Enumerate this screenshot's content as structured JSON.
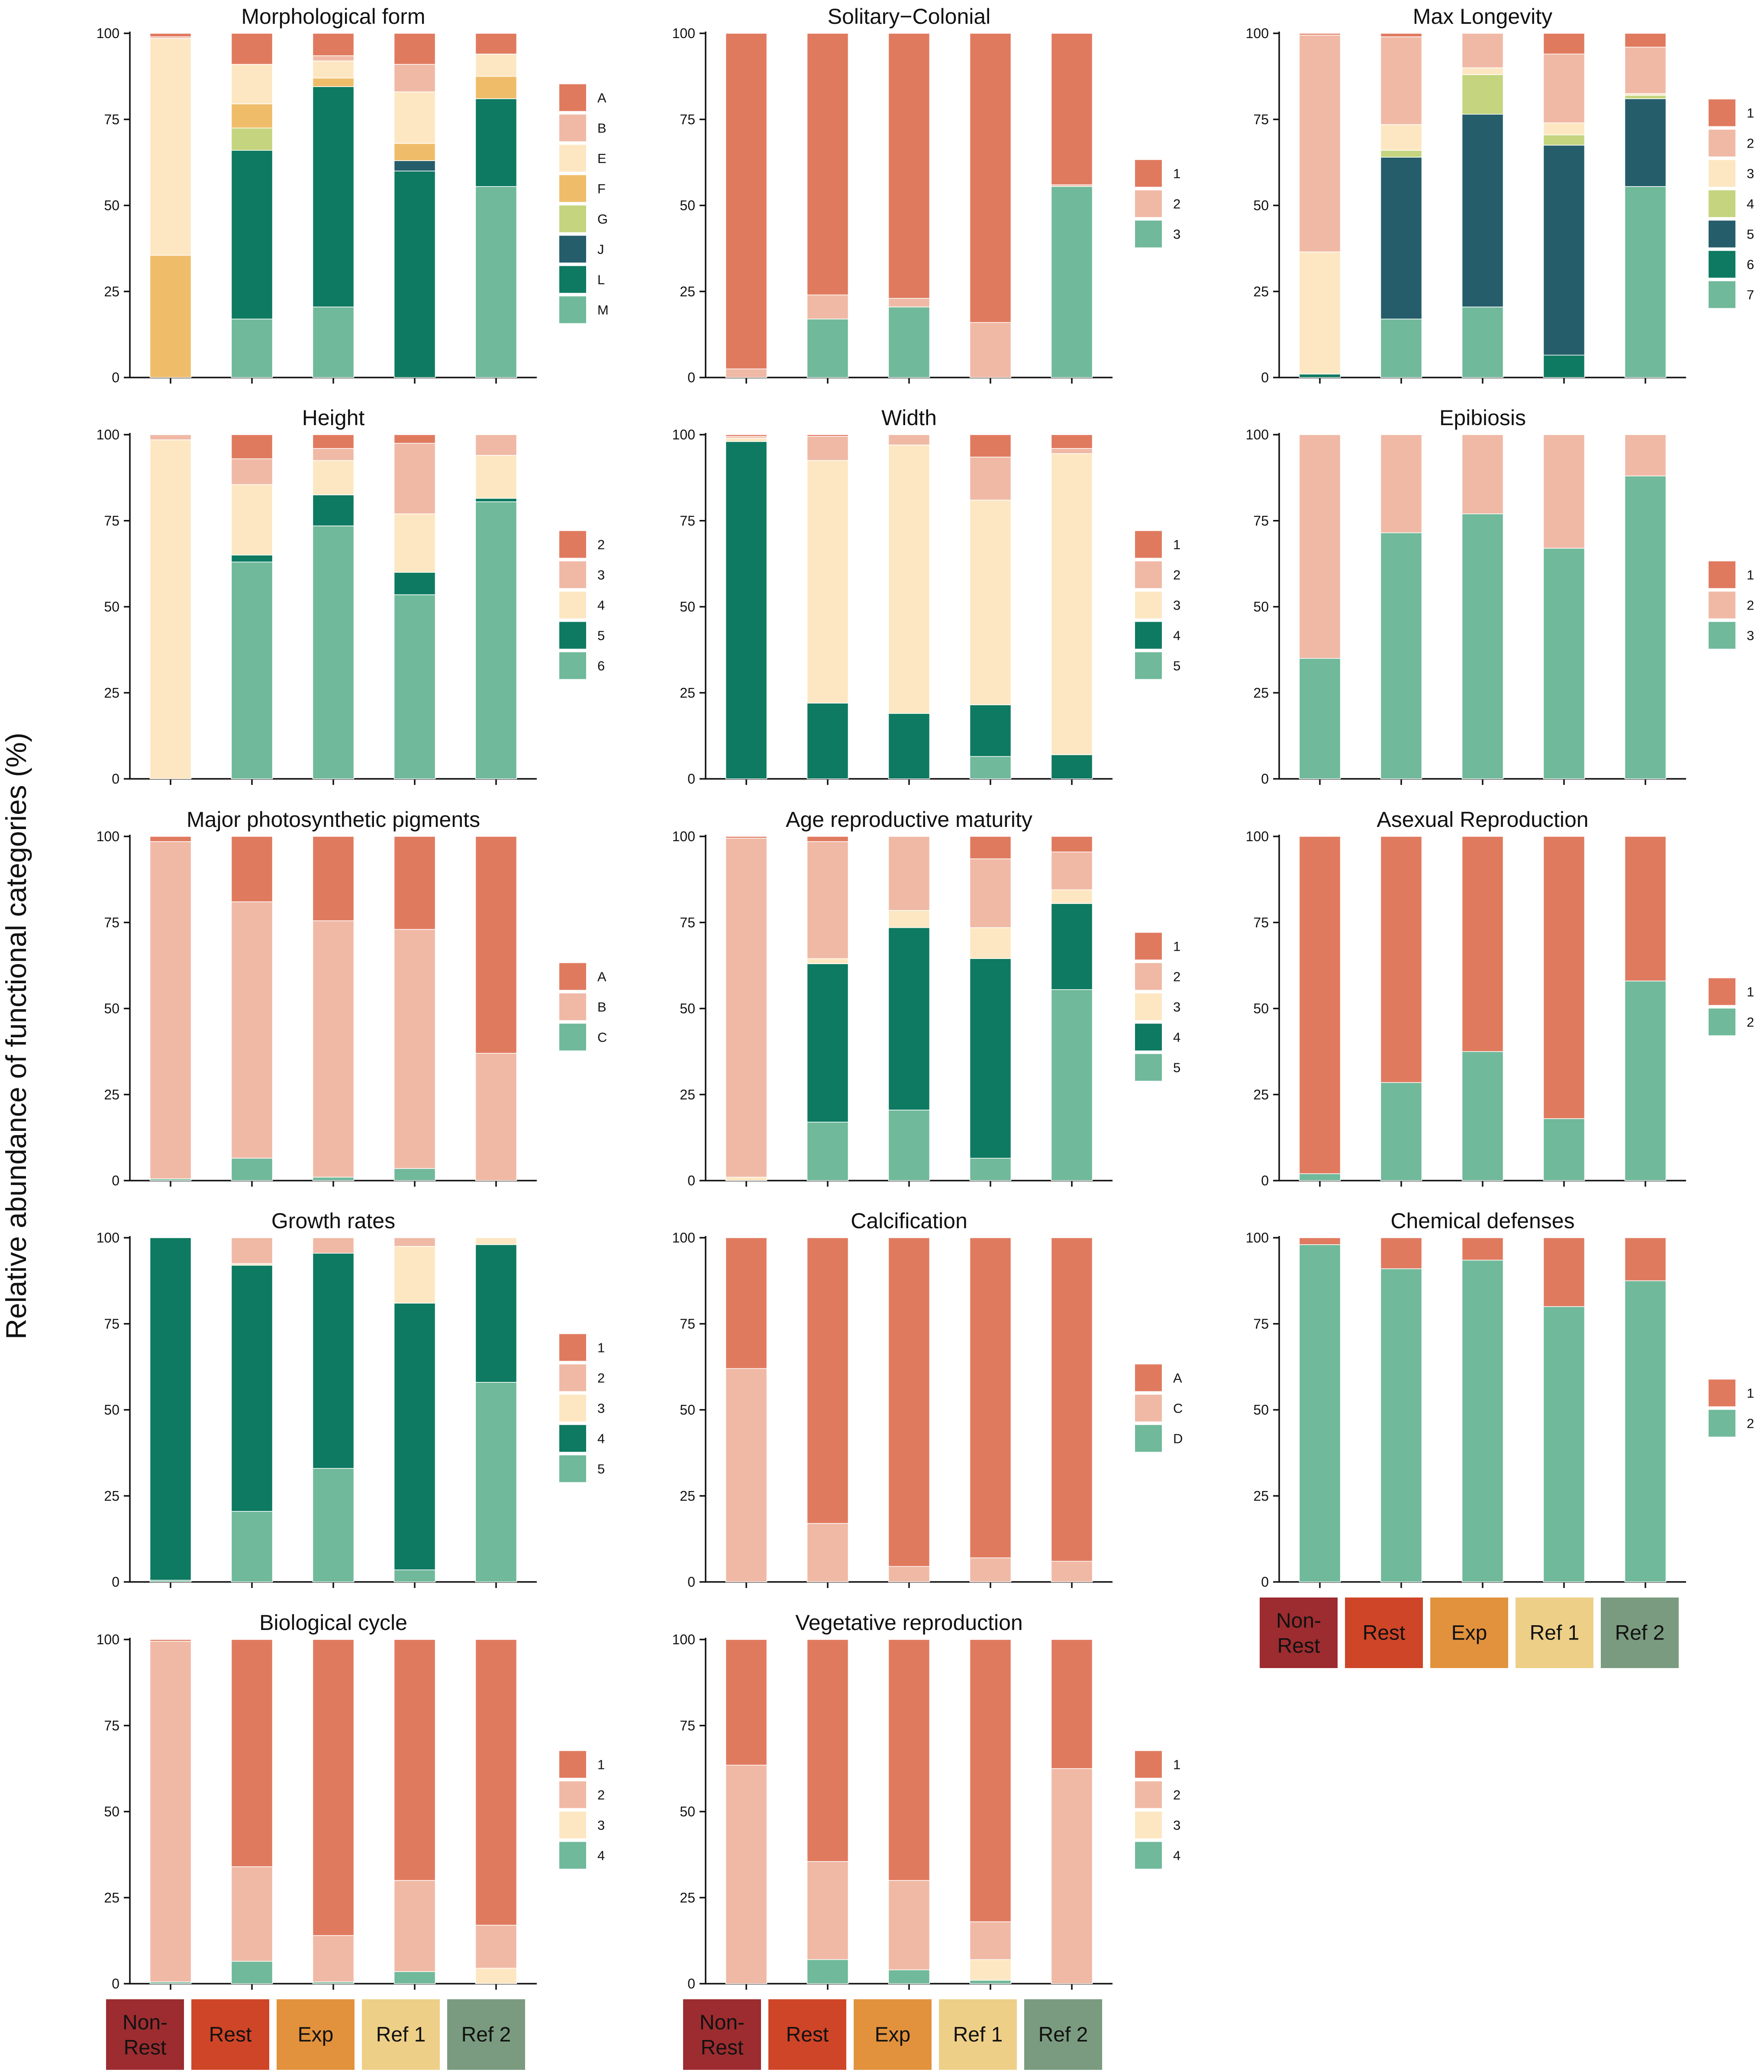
{
  "ylabel": "Relative abundance of functional categories (%)",
  "sites": [
    "Non-\nRest",
    "Rest",
    "Exp",
    "Ref 1",
    "Ref 2"
  ],
  "site_colors": [
    "#9c2c2f",
    "#cf4527",
    "#e2923d",
    "#eecf87",
    "#7a9b7f"
  ],
  "palettes": {
    "7": [
      "#e07a5f",
      "#f0b9a5",
      "#fde7c2",
      "#efbd6a",
      "#c4d47f",
      "#255d6a",
      "#0d7a61",
      "#70b99b"
    ],
    "pair": [
      "#e07a5f",
      "#70b99b"
    ],
    "triad": [
      "#e07a5f",
      "#f0b9a5",
      "#70b99b"
    ]
  },
  "chart_data": [
    {
      "type": "bar",
      "stacked": true,
      "title": "Morphological form",
      "ylim": [
        0,
        100
      ],
      "yticks": [
        0,
        25,
        50,
        75,
        100
      ],
      "categories": [
        "Non-Rest",
        "Rest",
        "Exp",
        "Ref 1",
        "Ref 2"
      ],
      "series": [
        {
          "name": "M",
          "color": "#70b99b",
          "values": [
            0,
            17,
            20.5,
            0,
            55.5
          ]
        },
        {
          "name": "L",
          "color": "#0d7a61",
          "values": [
            0,
            49,
            64,
            60,
            25.5
          ]
        },
        {
          "name": "J",
          "color": "#255d6a",
          "values": [
            0,
            0,
            0,
            3,
            0
          ]
        },
        {
          "name": "G",
          "color": "#c4d47f",
          "values": [
            0,
            6.5,
            0,
            0,
            0
          ]
        },
        {
          "name": "F",
          "color": "#efbd6a",
          "values": [
            35.5,
            7,
            2.5,
            5,
            6.5
          ]
        },
        {
          "name": "E",
          "color": "#fde7c2",
          "values": [
            63,
            11.5,
            5,
            15,
            6.5
          ]
        },
        {
          "name": "B",
          "color": "#f0b9a5",
          "values": [
            0.5,
            0,
            1.5,
            8,
            0
          ]
        },
        {
          "name": "A",
          "color": "#e07a5f",
          "values": [
            1,
            9,
            6.5,
            9,
            6
          ]
        }
      ]
    },
    {
      "type": "bar",
      "stacked": true,
      "title": "Solitary−Colonial",
      "ylim": [
        0,
        100
      ],
      "yticks": [
        0,
        25,
        50,
        75,
        100
      ],
      "categories": [
        "Non-Rest",
        "Rest",
        "Exp",
        "Ref 1",
        "Ref 2"
      ],
      "series": [
        {
          "name": "3",
          "color": "#70b99b",
          "values": [
            0,
            17,
            20.5,
            0,
            55.5
          ]
        },
        {
          "name": "2",
          "color": "#f0b9a5",
          "values": [
            2.5,
            7,
            2.5,
            16,
            0.5
          ]
        },
        {
          "name": "1",
          "color": "#e07a5f",
          "values": [
            97.5,
            76,
            77,
            84,
            44
          ]
        }
      ]
    },
    {
      "type": "bar",
      "stacked": true,
      "title": "Max Longevity",
      "ylim": [
        0,
        100
      ],
      "yticks": [
        0,
        25,
        50,
        75,
        100
      ],
      "categories": [
        "Non-Rest",
        "Rest",
        "Exp",
        "Ref 1",
        "Ref 2"
      ],
      "series": [
        {
          "name": "7",
          "color": "#70b99b",
          "values": [
            0,
            17,
            20.5,
            0,
            55.5
          ]
        },
        {
          "name": "6",
          "color": "#0d7a61",
          "values": [
            1,
            0,
            0,
            6.5,
            0
          ]
        },
        {
          "name": "5",
          "color": "#255d6a",
          "values": [
            0,
            47,
            56,
            61,
            25.5
          ]
        },
        {
          "name": "4",
          "color": "#c4d47f",
          "values": [
            0,
            2,
            11.5,
            3,
            1
          ]
        },
        {
          "name": "3",
          "color": "#fde7c2",
          "values": [
            35.5,
            7.5,
            2,
            3.5,
            0.5
          ]
        },
        {
          "name": "2",
          "color": "#f0b9a5",
          "values": [
            63,
            25.5,
            10,
            20,
            13.5
          ]
        },
        {
          "name": "1",
          "color": "#e07a5f",
          "values": [
            0.5,
            1,
            0,
            6,
            4
          ]
        }
      ]
    },
    {
      "type": "bar",
      "stacked": true,
      "title": "Height",
      "ylim": [
        0,
        100
      ],
      "yticks": [
        0,
        25,
        50,
        75,
        100
      ],
      "categories": [
        "Non-Rest",
        "Rest",
        "Exp",
        "Ref 1",
        "Ref 2"
      ],
      "series": [
        {
          "name": "6",
          "color": "#70b99b",
          "values": [
            0,
            63,
            73.5,
            53.5,
            80.5
          ]
        },
        {
          "name": "5",
          "color": "#0d7a61",
          "values": [
            0,
            2,
            9,
            6.5,
            1
          ]
        },
        {
          "name": "4",
          "color": "#fde7c2",
          "values": [
            98.5,
            20.5,
            10,
            17,
            12.5
          ]
        },
        {
          "name": "3",
          "color": "#f0b9a5",
          "values": [
            1.5,
            7.5,
            3.5,
            20.5,
            6
          ]
        },
        {
          "name": "2",
          "color": "#e07a5f",
          "values": [
            0,
            7,
            4,
            2.5,
            0
          ]
        }
      ]
    },
    {
      "type": "bar",
      "stacked": true,
      "title": "Width",
      "ylim": [
        0,
        100
      ],
      "yticks": [
        0,
        25,
        50,
        75,
        100
      ],
      "categories": [
        "Non-Rest",
        "Rest",
        "Exp",
        "Ref 1",
        "Ref 2"
      ],
      "series": [
        {
          "name": "5",
          "color": "#70b99b",
          "values": [
            0,
            0,
            0,
            6.5,
            0
          ]
        },
        {
          "name": "4",
          "color": "#0d7a61",
          "values": [
            98,
            22,
            19,
            15,
            7
          ]
        },
        {
          "name": "3",
          "color": "#fde7c2",
          "values": [
            1,
            70.5,
            78,
            59.5,
            87.5
          ]
        },
        {
          "name": "2",
          "color": "#f0b9a5",
          "values": [
            0.5,
            7,
            3,
            12.5,
            1.5
          ]
        },
        {
          "name": "1",
          "color": "#e07a5f",
          "values": [
            0.5,
            0.5,
            0,
            6.5,
            4
          ]
        }
      ]
    },
    {
      "type": "bar",
      "stacked": true,
      "title": "Epibiosis",
      "ylim": [
        0,
        100
      ],
      "yticks": [
        0,
        25,
        50,
        75,
        100
      ],
      "categories": [
        "Non-Rest",
        "Rest",
        "Exp",
        "Ref 1",
        "Ref 2"
      ],
      "series": [
        {
          "name": "3",
          "color": "#70b99b",
          "values": [
            35,
            71.5,
            77,
            67,
            88
          ]
        },
        {
          "name": "2",
          "color": "#f0b9a5",
          "values": [
            65,
            28.5,
            23,
            33,
            12
          ]
        },
        {
          "name": "1",
          "color": "#e07a5f",
          "values": [
            0,
            0,
            0,
            0,
            0
          ]
        }
      ]
    },
    {
      "type": "bar",
      "stacked": true,
      "title": "Major photosynthetic pigments",
      "ylim": [
        0,
        100
      ],
      "yticks": [
        0,
        25,
        50,
        75,
        100
      ],
      "categories": [
        "Non-Rest",
        "Rest",
        "Exp",
        "Ref 1",
        "Ref 2"
      ],
      "series": [
        {
          "name": "C",
          "color": "#70b99b",
          "values": [
            0.5,
            6.5,
            1,
            3.5,
            0
          ]
        },
        {
          "name": "B",
          "color": "#f0b9a5",
          "values": [
            98,
            74.5,
            74.5,
            69.5,
            37
          ]
        },
        {
          "name": "A",
          "color": "#e07a5f",
          "values": [
            1.5,
            19,
            24.5,
            27,
            63
          ]
        }
      ]
    },
    {
      "type": "bar",
      "stacked": true,
      "title": "Age reproductive maturity",
      "ylim": [
        0,
        100
      ],
      "yticks": [
        0,
        25,
        50,
        75,
        100
      ],
      "categories": [
        "Non-Rest",
        "Rest",
        "Exp",
        "Ref 1",
        "Ref 2"
      ],
      "series": [
        {
          "name": "5",
          "color": "#70b99b",
          "values": [
            0,
            17,
            20.5,
            6.5,
            55.5
          ]
        },
        {
          "name": "4",
          "color": "#0d7a61",
          "values": [
            0,
            46,
            53,
            58,
            25
          ]
        },
        {
          "name": "3",
          "color": "#fde7c2",
          "values": [
            1,
            1.5,
            5,
            9,
            4
          ]
        },
        {
          "name": "2",
          "color": "#f0b9a5",
          "values": [
            98.5,
            34,
            21.5,
            20,
            11
          ]
        },
        {
          "name": "1",
          "color": "#e07a5f",
          "values": [
            0.5,
            1.5,
            0,
            6.5,
            4.5
          ]
        }
      ]
    },
    {
      "type": "bar",
      "stacked": true,
      "title": "Asexual Reproduction",
      "ylim": [
        0,
        100
      ],
      "yticks": [
        0,
        25,
        50,
        75,
        100
      ],
      "categories": [
        "Non-Rest",
        "Rest",
        "Exp",
        "Ref 1",
        "Ref 2"
      ],
      "series": [
        {
          "name": "2",
          "color": "#70b99b",
          "values": [
            2,
            28.5,
            37.5,
            18,
            58
          ]
        },
        {
          "name": "1",
          "color": "#e07a5f",
          "values": [
            98,
            71.5,
            62.5,
            82,
            42
          ]
        }
      ]
    },
    {
      "type": "bar",
      "stacked": true,
      "title": "Growth rates",
      "ylim": [
        0,
        100
      ],
      "yticks": [
        0,
        25,
        50,
        75,
        100
      ],
      "categories": [
        "Non-Rest",
        "Rest",
        "Exp",
        "Ref 1",
        "Ref 2"
      ],
      "series": [
        {
          "name": "5",
          "color": "#70b99b",
          "values": [
            0.5,
            20.5,
            33,
            3.5,
            58
          ]
        },
        {
          "name": "4",
          "color": "#0d7a61",
          "values": [
            99.5,
            71.5,
            62.5,
            77.5,
            40
          ]
        },
        {
          "name": "3",
          "color": "#fde7c2",
          "values": [
            0,
            0.5,
            0,
            16.5,
            2
          ]
        },
        {
          "name": "2",
          "color": "#f0b9a5",
          "values": [
            0,
            7.5,
            4.5,
            2.5,
            0
          ]
        },
        {
          "name": "1",
          "color": "#e07a5f",
          "values": [
            0,
            0,
            0,
            0,
            0
          ]
        }
      ]
    },
    {
      "type": "bar",
      "stacked": true,
      "title": "Calcification",
      "ylim": [
        0,
        100
      ],
      "yticks": [
        0,
        25,
        50,
        75,
        100
      ],
      "categories": [
        "Non-Rest",
        "Rest",
        "Exp",
        "Ref 1",
        "Ref 2"
      ],
      "series": [
        {
          "name": "D",
          "color": "#70b99b",
          "values": [
            0,
            0,
            0,
            0,
            0
          ]
        },
        {
          "name": "C",
          "color": "#f0b9a5",
          "values": [
            62,
            17,
            4.5,
            7,
            6
          ]
        },
        {
          "name": "A",
          "color": "#e07a5f",
          "values": [
            38,
            83,
            95.5,
            93,
            94
          ]
        }
      ]
    },
    {
      "type": "bar",
      "stacked": true,
      "title": "Chemical defenses",
      "ylim": [
        0,
        100
      ],
      "yticks": [
        0,
        25,
        50,
        75,
        100
      ],
      "categories": [
        "Non-Rest",
        "Rest",
        "Exp",
        "Ref 1",
        "Ref 2"
      ],
      "series": [
        {
          "name": "2",
          "color": "#70b99b",
          "values": [
            98,
            91,
            93.5,
            80,
            87.5
          ]
        },
        {
          "name": "1",
          "color": "#e07a5f",
          "values": [
            2,
            9,
            6.5,
            20,
            12.5
          ]
        }
      ]
    },
    {
      "type": "bar",
      "stacked": true,
      "title": "Biological cycle",
      "ylim": [
        0,
        100
      ],
      "yticks": [
        0,
        25,
        50,
        75,
        100
      ],
      "categories": [
        "Non-Rest",
        "Rest",
        "Exp",
        "Ref 1",
        "Ref 2"
      ],
      "series": [
        {
          "name": "4",
          "color": "#70b99b",
          "values": [
            0.5,
            6.5,
            0.5,
            3.5,
            0
          ]
        },
        {
          "name": "3",
          "color": "#fde7c2",
          "values": [
            0,
            0,
            0,
            0,
            4.5
          ]
        },
        {
          "name": "2",
          "color": "#f0b9a5",
          "values": [
            99,
            27.5,
            13.5,
            26.5,
            12.5
          ]
        },
        {
          "name": "1",
          "color": "#e07a5f",
          "values": [
            0.5,
            66,
            86,
            70,
            83
          ]
        }
      ]
    },
    {
      "type": "bar",
      "stacked": true,
      "title": "Vegetative reproduction",
      "ylim": [
        0,
        100
      ],
      "yticks": [
        0,
        25,
        50,
        75,
        100
      ],
      "categories": [
        "Non-Rest",
        "Rest",
        "Exp",
        "Ref 1",
        "Ref 2"
      ],
      "series": [
        {
          "name": "4",
          "color": "#70b99b",
          "values": [
            0,
            7,
            4,
            1,
            0
          ]
        },
        {
          "name": "3",
          "color": "#fde7c2",
          "values": [
            0,
            0,
            0,
            6,
            0
          ]
        },
        {
          "name": "2",
          "color": "#f0b9a5",
          "values": [
            63.5,
            28.5,
            26,
            11,
            62.5
          ]
        },
        {
          "name": "1",
          "color": "#e07a5f",
          "values": [
            36.5,
            64.5,
            70,
            82,
            37.5
          ]
        }
      ]
    }
  ]
}
